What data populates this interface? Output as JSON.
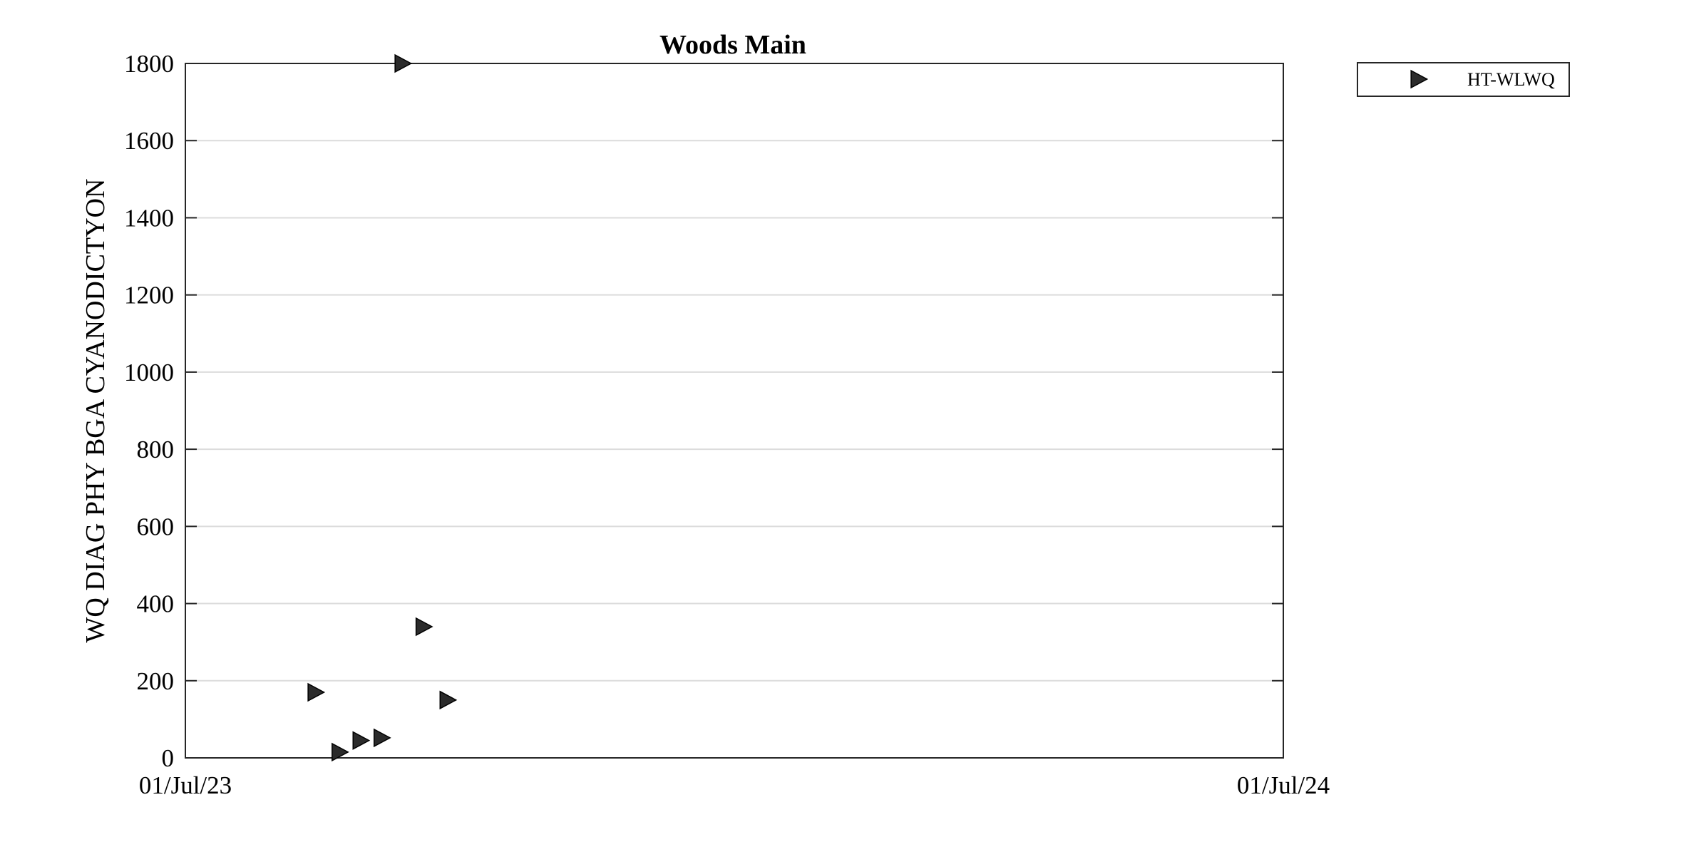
{
  "chart_data": {
    "type": "scatter",
    "title": "Woods Main",
    "ylabel": "WQ DIAG PHY BGA CYANODICTYON",
    "xlabel": "",
    "x_ticks": [
      "01/Jul/23",
      "01/Jul/24"
    ],
    "xlim": [
      "2023-07-01",
      "2024-07-01"
    ],
    "y_ticks": [
      0,
      200,
      400,
      600,
      800,
      1000,
      1200,
      1400,
      1600,
      1800
    ],
    "ylim": [
      0,
      1800
    ],
    "grid": "horizontal",
    "legend_position": "outside-top-right",
    "marker": "triangle-right",
    "marker_color": "#2b2b2b",
    "series": [
      {
        "name": "HT-WLWQ",
        "points": [
          {
            "x": "2023-08-13",
            "y": 170
          },
          {
            "x": "2023-08-21",
            "y": 15
          },
          {
            "x": "2023-08-28",
            "y": 45
          },
          {
            "x": "2023-09-04",
            "y": 52
          },
          {
            "x": "2023-09-11",
            "y": 1800
          },
          {
            "x": "2023-09-18",
            "y": 340
          },
          {
            "x": "2023-09-26",
            "y": 150
          }
        ]
      }
    ]
  }
}
